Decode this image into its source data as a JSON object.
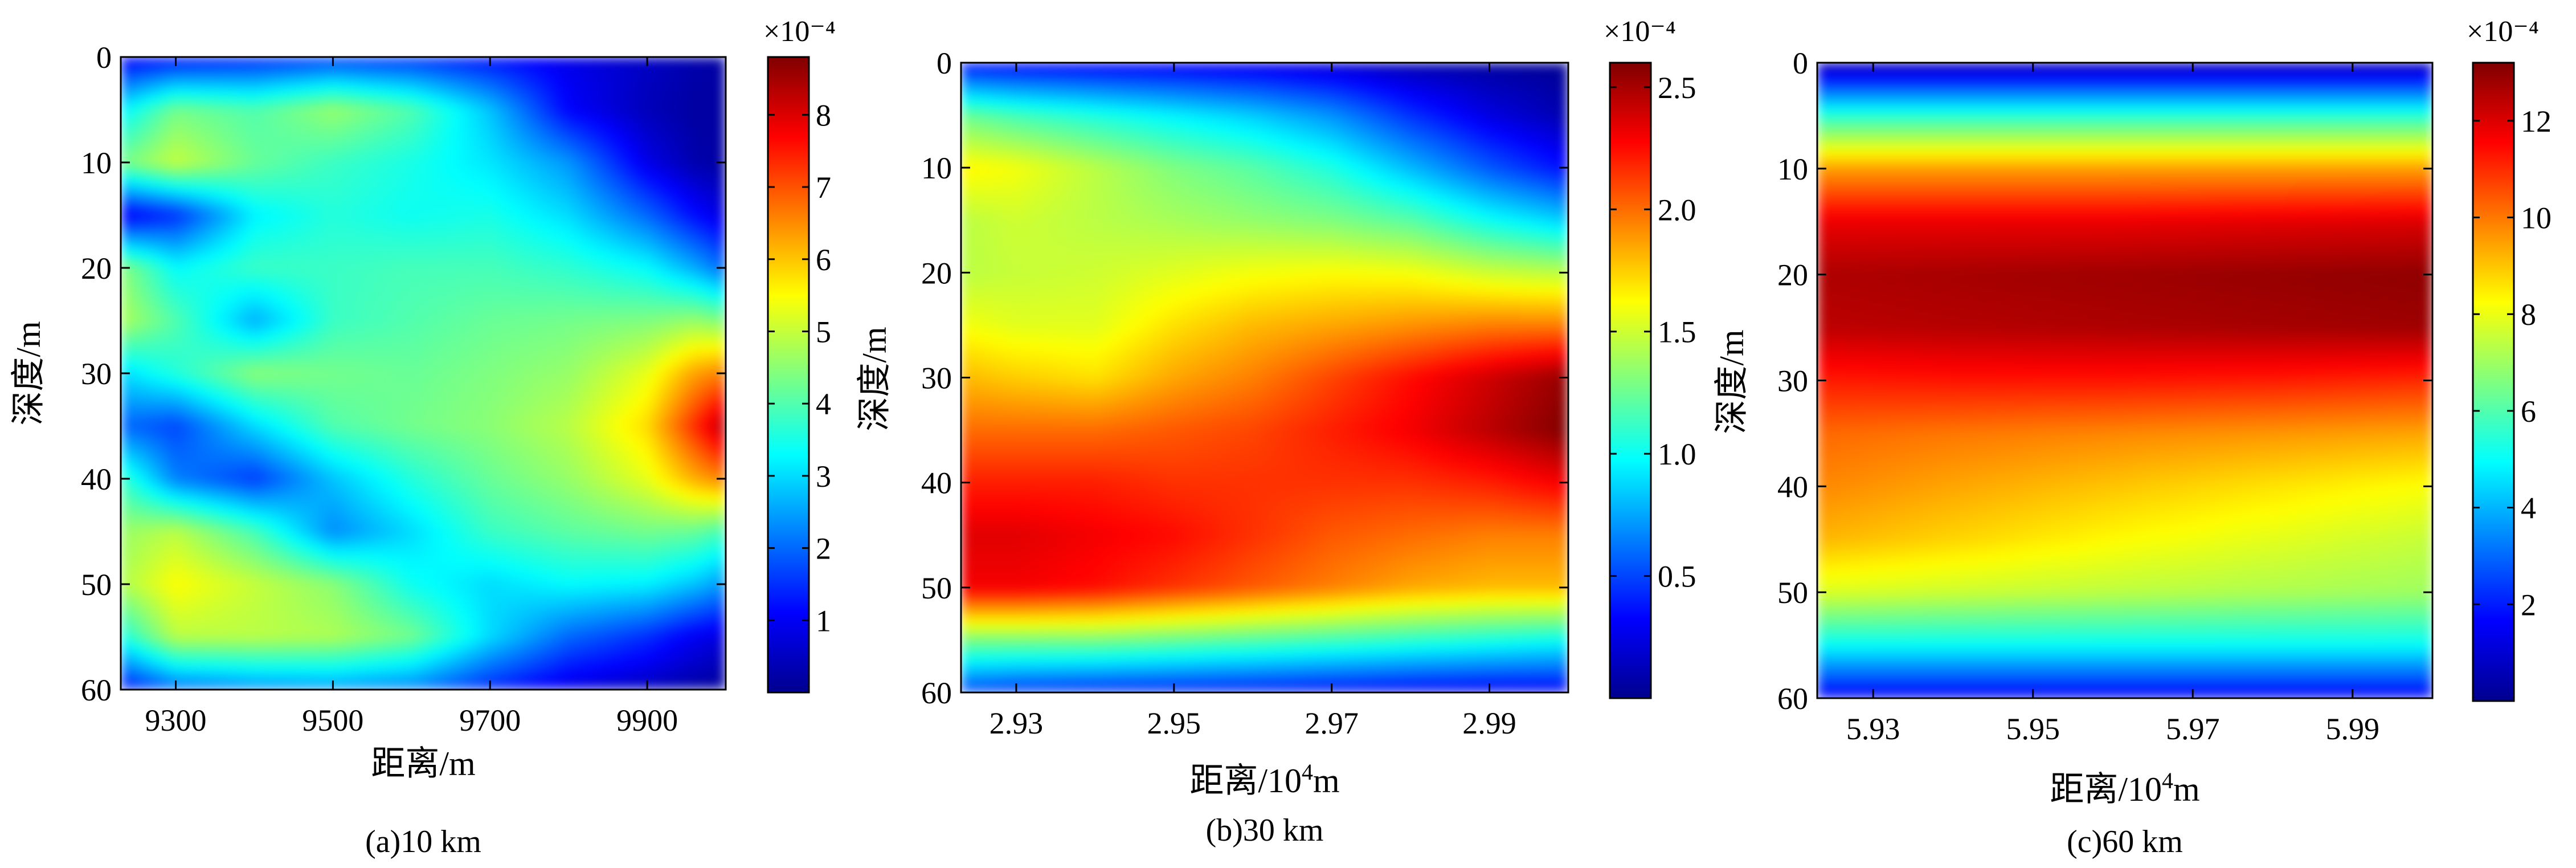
{
  "chart_data": [
    {
      "type": "heatmap",
      "caption": "(a)10 km",
      "xlabel": "距离/m",
      "ylabel": "深度/m",
      "xlim": [
        9230,
        10000
      ],
      "ylim": [
        0,
        60
      ],
      "y_reversed": true,
      "x_ticks": [
        "9300",
        "9500",
        "9700",
        "9900"
      ],
      "x_tick_values": [
        9300,
        9500,
        9700,
        9900
      ],
      "y_ticks": [
        "0",
        "10",
        "20",
        "30",
        "40",
        "50",
        "60"
      ],
      "y_tick_values": [
        0,
        10,
        20,
        30,
        40,
        50,
        60
      ],
      "colorbar": {
        "exponent": "×10⁻⁴",
        "range": [
          0,
          8.8
        ],
        "ticks": [
          "1",
          "2",
          "3",
          "4",
          "5",
          "6",
          "7",
          "8"
        ],
        "tick_values": [
          1,
          2,
          3,
          4,
          5,
          6,
          7,
          8
        ],
        "colormap": "jet"
      },
      "field": {
        "rows": [
          0,
          5,
          10,
          15,
          20,
          25,
          30,
          35,
          40,
          45,
          50,
          55,
          60
        ],
        "cols": [
          9230,
          9300,
          9400,
          9500,
          9600,
          9700,
          9800,
          9900,
          9960,
          10000
        ],
        "values": [
          [
            1.0,
            1.2,
            1.4,
            1.6,
            1.5,
            1.2,
            0.9,
            0.6,
            0.4,
            0.3
          ],
          [
            3.2,
            4.3,
            4.0,
            4.6,
            4.0,
            2.8,
            1.1,
            0.5,
            0.3,
            0.3
          ],
          [
            4.3,
            5.0,
            4.2,
            3.8,
            3.5,
            3.1,
            2.4,
            0.9,
            0.4,
            0.3
          ],
          [
            1.0,
            1.5,
            3.2,
            3.6,
            3.4,
            3.5,
            3.0,
            2.0,
            1.2,
            0.8
          ],
          [
            4.5,
            3.3,
            3.8,
            3.8,
            3.9,
            3.9,
            3.7,
            3.3,
            2.6,
            2.0
          ],
          [
            4.8,
            4.0,
            2.6,
            3.8,
            4.0,
            4.2,
            4.3,
            4.4,
            4.6,
            4.4
          ],
          [
            3.0,
            3.6,
            4.5,
            4.3,
            4.2,
            4.4,
            4.6,
            5.3,
            6.3,
            6.6
          ],
          [
            2.0,
            1.7,
            3.0,
            4.0,
            4.3,
            4.5,
            4.9,
            5.8,
            7.3,
            8.4
          ],
          [
            3.8,
            2.2,
            1.6,
            2.8,
            3.6,
            4.2,
            4.6,
            5.3,
            6.2,
            6.6
          ],
          [
            4.6,
            4.9,
            3.9,
            2.3,
            3.0,
            3.8,
            4.1,
            4.3,
            4.2,
            3.9
          ],
          [
            4.8,
            5.5,
            5.0,
            4.5,
            3.4,
            3.0,
            3.3,
            3.2,
            2.8,
            2.4
          ],
          [
            3.5,
            4.9,
            4.9,
            4.8,
            4.3,
            3.0,
            2.0,
            1.5,
            1.0,
            0.8
          ],
          [
            1.2,
            2.0,
            2.3,
            2.4,
            2.2,
            1.4,
            0.8,
            0.5,
            0.3,
            0.2
          ]
        ]
      }
    },
    {
      "type": "heatmap",
      "caption": "(b)30 km",
      "xlabel": "距离/10",
      "xlabel_sup": "4",
      "xlabel_unit": "m",
      "ylabel": "深度/m",
      "xlim": [
        2.923,
        3.0
      ],
      "ylim": [
        0,
        60
      ],
      "y_reversed": true,
      "x_ticks": [
        "2.93",
        "2.95",
        "2.97",
        "2.99"
      ],
      "x_tick_values": [
        2.93,
        2.95,
        2.97,
        2.99
      ],
      "y_ticks": [
        "0",
        "10",
        "20",
        "30",
        "40",
        "50",
        "60"
      ],
      "y_tick_values": [
        0,
        10,
        20,
        30,
        40,
        50,
        60
      ],
      "colorbar": {
        "exponent": "×10⁻⁴",
        "range": [
          0,
          2.6
        ],
        "ticks": [
          "0.5",
          "1.0",
          "1.5",
          "2.0",
          "2.5"
        ],
        "tick_values": [
          0.5,
          1.0,
          1.5,
          2.0,
          2.5
        ],
        "colormap": "jet"
      },
      "field": {
        "rows": [
          0,
          5,
          10,
          15,
          20,
          25,
          30,
          35,
          40,
          45,
          50,
          55,
          60
        ],
        "cols": [
          2.923,
          2.93,
          2.94,
          2.95,
          2.96,
          2.97,
          2.98,
          2.99,
          3.0
        ],
        "values": [
          [
            0.35,
            0.32,
            0.3,
            0.28,
            0.25,
            0.2,
            0.12,
            0.08,
            0.05
          ],
          [
            1.25,
            1.15,
            1.05,
            0.95,
            0.85,
            0.7,
            0.45,
            0.25,
            0.12
          ],
          [
            1.65,
            1.6,
            1.45,
            1.3,
            1.2,
            1.05,
            0.8,
            0.55,
            0.35
          ],
          [
            1.45,
            1.5,
            1.45,
            1.4,
            1.35,
            1.3,
            1.2,
            1.0,
            0.85
          ],
          [
            1.45,
            1.48,
            1.5,
            1.55,
            1.6,
            1.62,
            1.6,
            1.5,
            1.45
          ],
          [
            1.6,
            1.55,
            1.55,
            1.7,
            1.8,
            1.85,
            1.9,
            1.95,
            1.95
          ],
          [
            1.8,
            1.75,
            1.7,
            1.85,
            1.95,
            2.1,
            2.25,
            2.4,
            2.55
          ],
          [
            2.0,
            2.0,
            2.0,
            2.05,
            2.1,
            2.2,
            2.3,
            2.45,
            2.6
          ],
          [
            2.2,
            2.2,
            2.2,
            2.15,
            2.15,
            2.15,
            2.15,
            2.2,
            2.3
          ],
          [
            2.35,
            2.35,
            2.3,
            2.25,
            2.15,
            2.05,
            2.0,
            1.95,
            1.95
          ],
          [
            2.3,
            2.3,
            2.25,
            2.15,
            2.05,
            1.95,
            1.85,
            1.8,
            1.8
          ],
          [
            1.3,
            1.3,
            1.3,
            1.25,
            1.2,
            1.15,
            1.1,
            1.05,
            1.0
          ],
          [
            0.5,
            0.45,
            0.42,
            0.4,
            0.38,
            0.35,
            0.32,
            0.3,
            0.3
          ]
        ]
      }
    },
    {
      "type": "heatmap",
      "caption": "(c)60 km",
      "xlabel": "距离/10",
      "xlabel_sup": "4",
      "xlabel_unit": "m",
      "ylabel": "深度/m",
      "xlim": [
        5.923,
        6.0
      ],
      "ylim": [
        0,
        60
      ],
      "y_reversed": true,
      "x_ticks": [
        "5.93",
        "5.95",
        "5.97",
        "5.99"
      ],
      "x_tick_values": [
        5.93,
        5.95,
        5.97,
        5.99
      ],
      "y_ticks": [
        "0",
        "10",
        "20",
        "30",
        "40",
        "50",
        "60"
      ],
      "y_tick_values": [
        0,
        10,
        20,
        30,
        40,
        50,
        60
      ],
      "colorbar": {
        "exponent": "×10⁻⁴",
        "range": [
          0,
          13.2
        ],
        "ticks": [
          "2",
          "4",
          "6",
          "8",
          "10",
          "12"
        ],
        "tick_values": [
          2,
          4,
          6,
          8,
          10,
          12
        ],
        "colormap": "jet"
      },
      "field": {
        "rows": [
          0,
          5,
          10,
          15,
          20,
          25,
          30,
          35,
          40,
          45,
          50,
          55,
          60
        ],
        "cols": [
          5.923,
          5.94,
          5.96,
          5.98,
          6.0
        ],
        "values": [
          [
            0.5,
            0.5,
            0.5,
            0.5,
            0.5
          ],
          [
            5.5,
            5.5,
            5.5,
            5.5,
            5.5
          ],
          [
            9.5,
            9.5,
            9.5,
            9.5,
            9.5
          ],
          [
            11.8,
            11.8,
            11.8,
            11.9,
            12.0
          ],
          [
            12.6,
            12.7,
            12.8,
            12.9,
            13.0
          ],
          [
            12.4,
            12.5,
            12.6,
            12.7,
            12.8
          ],
          [
            11.2,
            11.3,
            11.3,
            11.2,
            11.0
          ],
          [
            10.2,
            10.0,
            9.8,
            9.6,
            9.4
          ],
          [
            9.8,
            9.4,
            9.0,
            8.6,
            8.2
          ],
          [
            9.2,
            8.8,
            8.3,
            7.9,
            7.5
          ],
          [
            7.8,
            7.6,
            7.4,
            7.2,
            7.0
          ],
          [
            5.0,
            5.0,
            5.0,
            5.0,
            5.0
          ],
          [
            1.5,
            1.5,
            1.5,
            1.5,
            1.5
          ]
        ]
      }
    }
  ]
}
